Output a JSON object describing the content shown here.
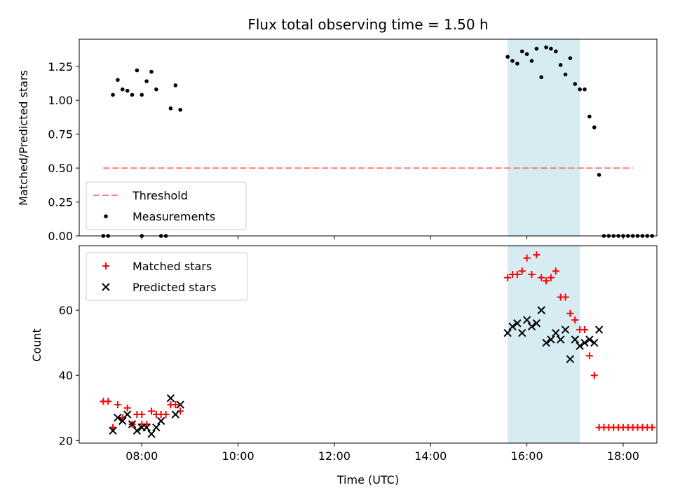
{
  "chart_data": [
    {
      "type": "scatter",
      "title": "Flux total observing time = 1.50 h",
      "xlabel": "",
      "ylabel": "Matched/Predicted stars",
      "xlim": [
        "06:42",
        "18:42"
      ],
      "ylim": [
        0,
        1.45
      ],
      "x_ticks": [
        "08:00",
        "10:00",
        "12:00",
        "14:00",
        "16:00",
        "18:00"
      ],
      "y_ticks": [
        "0.00",
        "0.25",
        "0.50",
        "0.75",
        "1.00",
        "1.25"
      ],
      "grid": false,
      "legend_position": "lower-left",
      "highlight_span": [
        "15:36",
        "17:06"
      ],
      "threshold": {
        "name": "Threshold",
        "value": 0.5,
        "x_range": [
          "07:12",
          "18:12"
        ],
        "color": "#ff7f7f"
      },
      "series": [
        {
          "name": "Measurements",
          "marker": "dot",
          "color": "#000000",
          "points": [
            [
              "07:12",
              0.0
            ],
            [
              "07:18",
              0.0
            ],
            [
              "07:24",
              1.04
            ],
            [
              "07:30",
              1.15
            ],
            [
              "07:36",
              1.08
            ],
            [
              "07:42",
              1.07
            ],
            [
              "07:48",
              1.04
            ],
            [
              "07:54",
              1.22
            ],
            [
              "08:00",
              0.0
            ],
            [
              "08:00",
              1.04
            ],
            [
              "08:06",
              1.14
            ],
            [
              "08:12",
              1.21
            ],
            [
              "08:18",
              1.08
            ],
            [
              "08:24",
              0.0
            ],
            [
              "08:30",
              0.0
            ],
            [
              "08:36",
              0.94
            ],
            [
              "08:42",
              1.11
            ],
            [
              "08:48",
              0.93
            ],
            [
              "15:36",
              1.32
            ],
            [
              "15:42",
              1.29
            ],
            [
              "15:48",
              1.27
            ],
            [
              "15:54",
              1.36
            ],
            [
              "16:00",
              1.34
            ],
            [
              "16:06",
              1.29
            ],
            [
              "16:12",
              1.38
            ],
            [
              "16:18",
              1.17
            ],
            [
              "16:24",
              1.39
            ],
            [
              "16:30",
              1.38
            ],
            [
              "16:36",
              1.36
            ],
            [
              "16:42",
              1.26
            ],
            [
              "16:48",
              1.19
            ],
            [
              "16:54",
              1.31
            ],
            [
              "17:00",
              1.12
            ],
            [
              "17:06",
              1.08
            ],
            [
              "17:12",
              1.08
            ],
            [
              "17:18",
              0.88
            ],
            [
              "17:24",
              0.8
            ],
            [
              "17:30",
              0.45
            ],
            [
              "17:36",
              0.0
            ],
            [
              "17:42",
              0.0
            ],
            [
              "17:48",
              0.0
            ],
            [
              "17:54",
              0.0
            ],
            [
              "18:00",
              0.0
            ],
            [
              "18:06",
              0.0
            ],
            [
              "18:12",
              0.0
            ],
            [
              "18:18",
              0.0
            ],
            [
              "18:24",
              0.0
            ],
            [
              "18:30",
              0.0
            ],
            [
              "18:36",
              0.0
            ]
          ]
        }
      ],
      "legend": [
        "Threshold",
        "Measurements"
      ]
    },
    {
      "type": "scatter",
      "title": "",
      "xlabel": "Time (UTC)",
      "ylabel": "Count",
      "xlim": [
        "06:42",
        "18:42"
      ],
      "ylim": [
        19.2,
        79.8
      ],
      "x_ticks": [
        "08:00",
        "10:00",
        "12:00",
        "14:00",
        "16:00",
        "18:00"
      ],
      "y_ticks": [
        "20",
        "40",
        "60"
      ],
      "grid": false,
      "legend_position": "upper-left",
      "highlight_span": [
        "15:36",
        "17:06"
      ],
      "series": [
        {
          "name": "Matched stars",
          "marker": "plus",
          "color": "#ff0000",
          "points": [
            [
              "07:12",
              32
            ],
            [
              "07:18",
              32
            ],
            [
              "07:24",
              24
            ],
            [
              "07:30",
              31
            ],
            [
              "07:36",
              27
            ],
            [
              "07:42",
              30
            ],
            [
              "07:48",
              25
            ],
            [
              "07:54",
              28
            ],
            [
              "08:00",
              28
            ],
            [
              "08:00",
              25
            ],
            [
              "08:06",
              25
            ],
            [
              "08:12",
              29
            ],
            [
              "08:18",
              28
            ],
            [
              "08:24",
              28
            ],
            [
              "08:30",
              28
            ],
            [
              "08:36",
              31
            ],
            [
              "08:42",
              31
            ],
            [
              "08:48",
              29
            ],
            [
              "15:36",
              70
            ],
            [
              "15:42",
              71
            ],
            [
              "15:48",
              71
            ],
            [
              "15:54",
              72
            ],
            [
              "16:00",
              76
            ],
            [
              "16:06",
              71
            ],
            [
              "16:12",
              77
            ],
            [
              "16:18",
              70
            ],
            [
              "16:24",
              69
            ],
            [
              "16:30",
              70
            ],
            [
              "16:36",
              72
            ],
            [
              "16:42",
              64
            ],
            [
              "16:48",
              64
            ],
            [
              "16:54",
              59
            ],
            [
              "17:00",
              57
            ],
            [
              "17:06",
              54
            ],
            [
              "17:12",
              54
            ],
            [
              "17:18",
              46
            ],
            [
              "17:24",
              40
            ],
            [
              "17:30",
              24
            ],
            [
              "17:36",
              24
            ],
            [
              "17:42",
              24
            ],
            [
              "17:48",
              24
            ],
            [
              "17:54",
              24
            ],
            [
              "18:00",
              24
            ],
            [
              "18:06",
              24
            ],
            [
              "18:12",
              24
            ],
            [
              "18:18",
              24
            ],
            [
              "18:24",
              24
            ],
            [
              "18:30",
              24
            ],
            [
              "18:36",
              24
            ]
          ]
        },
        {
          "name": "Predicted stars",
          "marker": "x",
          "color": "#000000",
          "points": [
            [
              "07:24",
              23
            ],
            [
              "07:30",
              27
            ],
            [
              "07:36",
              26
            ],
            [
              "07:42",
              28
            ],
            [
              "07:48",
              25
            ],
            [
              "07:54",
              23
            ],
            [
              "08:00",
              24
            ],
            [
              "08:06",
              24
            ],
            [
              "08:12",
              22
            ],
            [
              "08:18",
              24
            ],
            [
              "08:24",
              26
            ],
            [
              "08:36",
              33
            ],
            [
              "08:42",
              28
            ],
            [
              "08:48",
              31
            ],
            [
              "15:36",
              53
            ],
            [
              "15:42",
              55
            ],
            [
              "15:48",
              56
            ],
            [
              "15:54",
              53
            ],
            [
              "16:00",
              57
            ],
            [
              "16:06",
              55
            ],
            [
              "16:12",
              56
            ],
            [
              "16:18",
              60
            ],
            [
              "16:24",
              50
            ],
            [
              "16:30",
              51
            ],
            [
              "16:36",
              53
            ],
            [
              "16:42",
              51
            ],
            [
              "16:48",
              54
            ],
            [
              "16:54",
              45
            ],
            [
              "17:00",
              51
            ],
            [
              "17:06",
              49
            ],
            [
              "17:12",
              50
            ],
            [
              "17:18",
              51
            ],
            [
              "17:24",
              50
            ],
            [
              "17:30",
              54
            ]
          ]
        }
      ],
      "legend": [
        "Matched stars",
        "Predicted stars"
      ]
    }
  ],
  "colors": {
    "highlight": "#add8e6",
    "threshold": "#ff7f7f",
    "matched": "#ff0000",
    "predicted": "#000000",
    "measurements": "#000000"
  }
}
